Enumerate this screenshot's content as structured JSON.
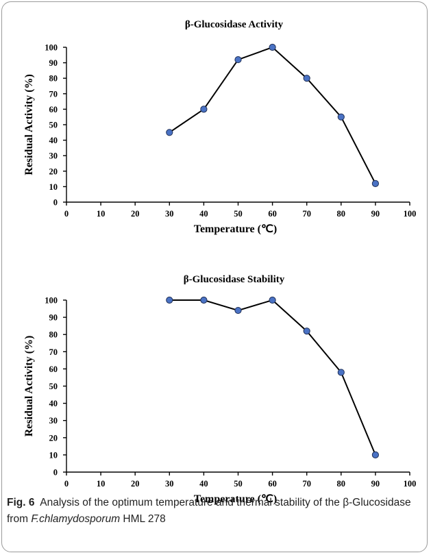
{
  "chart_data": [
    {
      "type": "line",
      "title": "β-Glucosidase Activity",
      "xlabel": "Temperature (℃)",
      "ylabel": "Residual Activity (%)",
      "xlim": [
        0,
        100
      ],
      "ylim": [
        0,
        100
      ],
      "xticks": [
        0,
        10,
        20,
        30,
        40,
        50,
        60,
        70,
        80,
        90,
        100
      ],
      "yticks": [
        0,
        10,
        20,
        30,
        40,
        50,
        60,
        70,
        80,
        90,
        100
      ],
      "x": [
        30,
        40,
        50,
        60,
        70,
        80,
        90
      ],
      "series": [
        {
          "values": [
            45,
            60,
            92,
            100,
            80,
            55,
            12
          ]
        }
      ],
      "marker_color": "#4a72c4",
      "line_color": "#000000"
    },
    {
      "type": "line",
      "title": "β-Glucosidase Stability",
      "xlabel": "Temperature (℃)",
      "ylabel": "Residual Activity (%)",
      "xlim": [
        0,
        100
      ],
      "ylim": [
        0,
        100
      ],
      "xticks": [
        0,
        10,
        20,
        30,
        40,
        50,
        60,
        70,
        80,
        90,
        100
      ],
      "yticks": [
        0,
        10,
        20,
        30,
        40,
        50,
        60,
        70,
        80,
        90,
        100
      ],
      "x": [
        30,
        40,
        50,
        60,
        70,
        80,
        90
      ],
      "series": [
        {
          "values": [
            100,
            100,
            94,
            100,
            82,
            58,
            10
          ]
        }
      ],
      "marker_color": "#4a72c4",
      "line_color": "#000000"
    }
  ],
  "caption": {
    "label": "Fig. 6",
    "text_before": "Analysis of the optimum temperature and thermal stability of the β-Glucosidase from ",
    "species": "F.chlamydosporum",
    "text_after": " HML 278"
  }
}
